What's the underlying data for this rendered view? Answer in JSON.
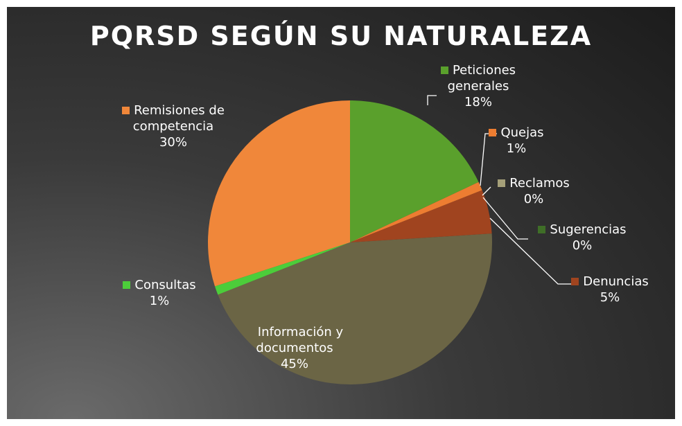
{
  "chart_data": {
    "type": "pie",
    "title": "PQRSD SEGÚN SU NATURALEZA",
    "categories": [
      "Peticiones generales",
      "Quejas",
      "Reclamos",
      "Sugerencias",
      "Denuncias",
      "Información y documentos",
      "Consultas",
      "Remisiones de competencia"
    ],
    "values": [
      18,
      1,
      0,
      0,
      5,
      45,
      1,
      30
    ],
    "value_labels": [
      "18%",
      "1%",
      "0%",
      "0%",
      "5%",
      "45%",
      "1%",
      "30%"
    ],
    "colors": [
      "#5aa02c",
      "#ed7d31",
      "#a5a079",
      "#3f6e27",
      "#a0441f",
      "#6b6545",
      "#4ccd3a",
      "#f0873a"
    ]
  }
}
